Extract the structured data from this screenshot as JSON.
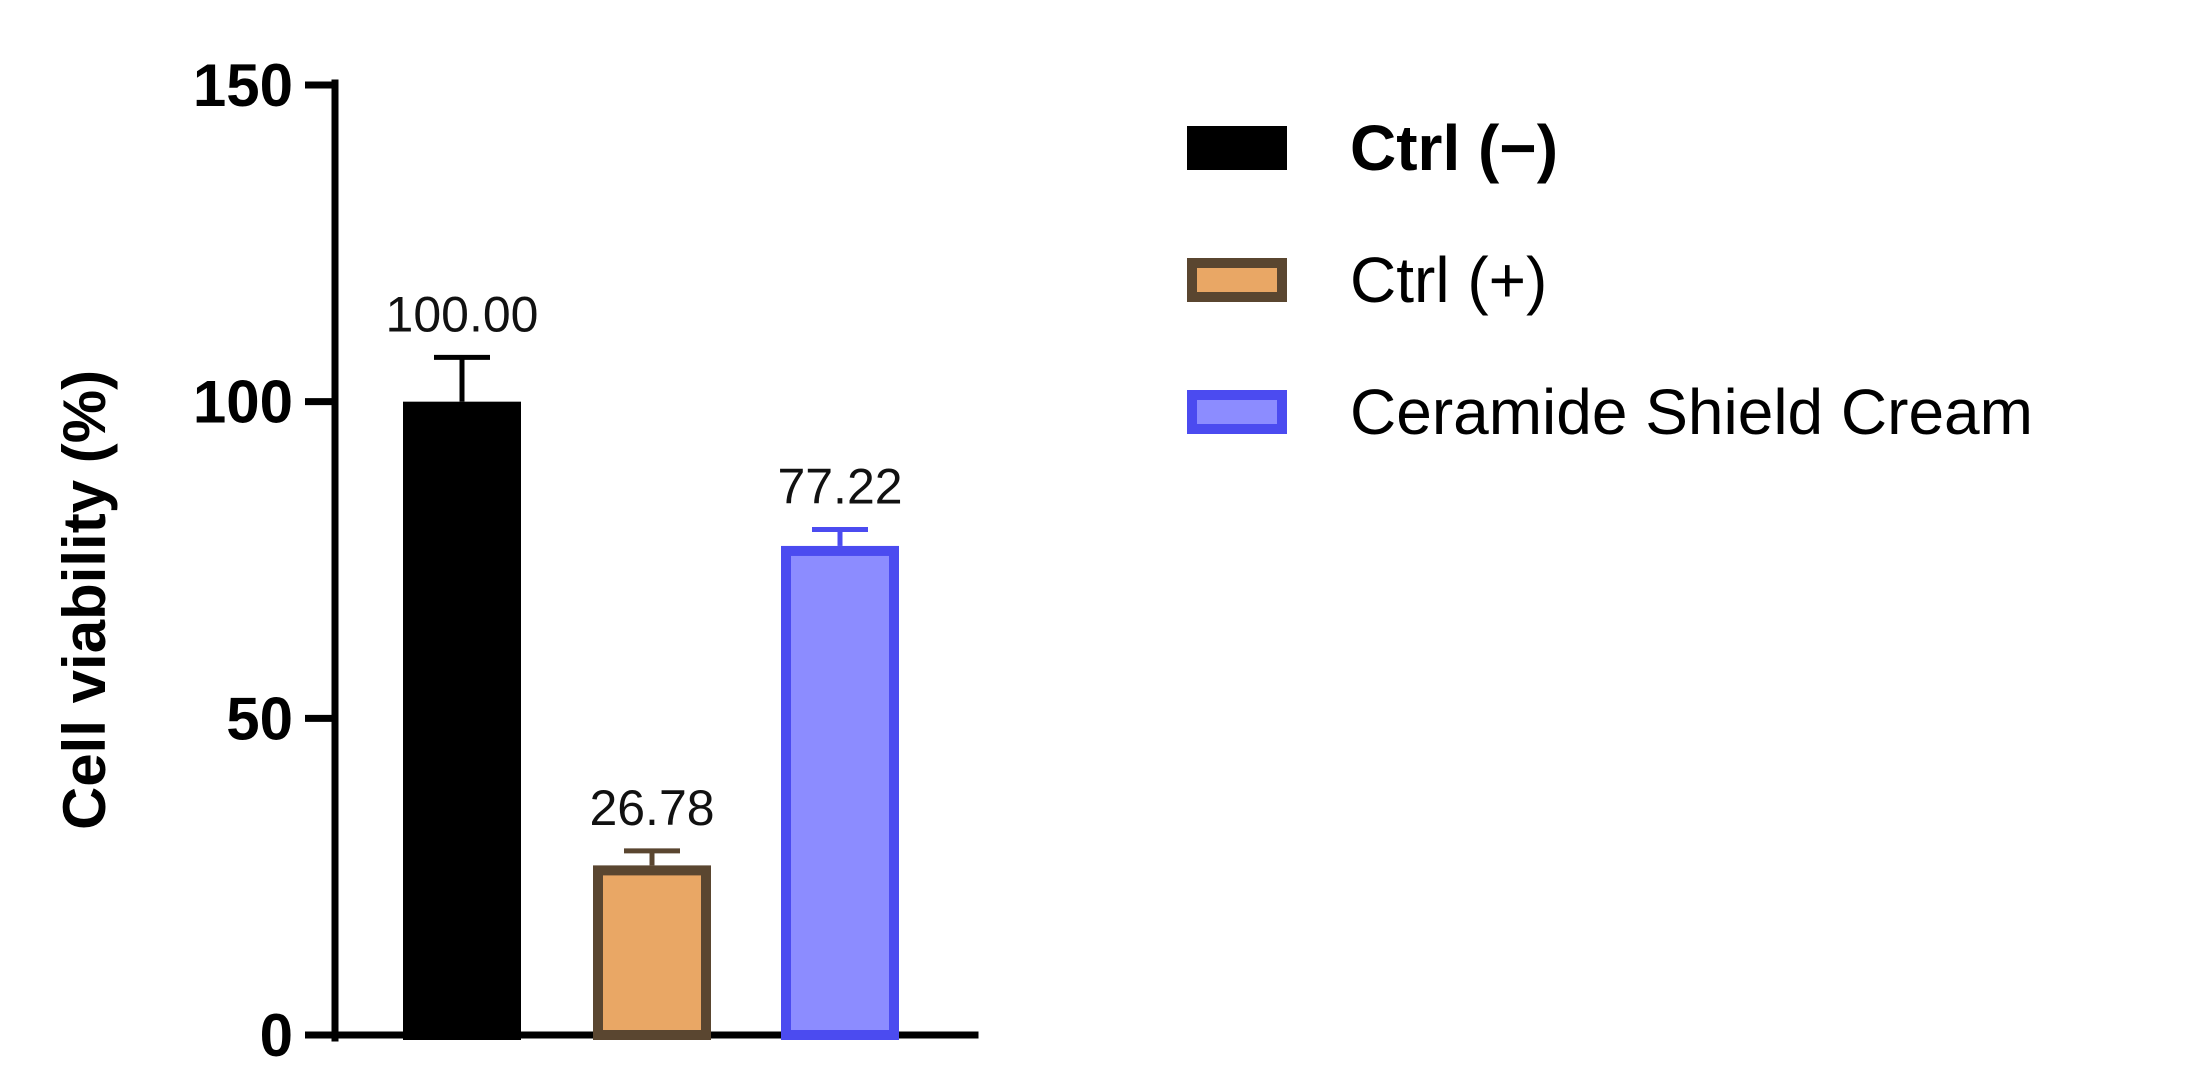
{
  "chart_data": {
    "type": "bar",
    "categories": [
      "Ctrl (−)",
      "Ctrl (+)",
      "Ceramide Shield Cream"
    ],
    "values": [
      100.0,
      26.78,
      77.22
    ],
    "errors": [
      7.0,
      2.3,
      2.6
    ],
    "value_labels": [
      "100.00",
      "26.78",
      "77.22"
    ],
    "colors": {
      "fill": [
        "#000000",
        "#E9A765",
        "#8C8CFF"
      ],
      "stroke": [
        "#000000",
        "#5A4630",
        "#4B4BF0"
      ]
    },
    "ylabel": "Cell viability (%)",
    "xlabel": "",
    "ylim": [
      0,
      150
    ],
    "yticks": [
      0,
      50,
      100,
      150
    ],
    "legend_position": "top-right",
    "legend": [
      {
        "label": "Ctrl (−)",
        "bold": true
      },
      {
        "label": "Ctrl (+)",
        "bold": false
      },
      {
        "label": "Ceramide Shield Cream",
        "bold": false
      }
    ],
    "grid": false
  }
}
